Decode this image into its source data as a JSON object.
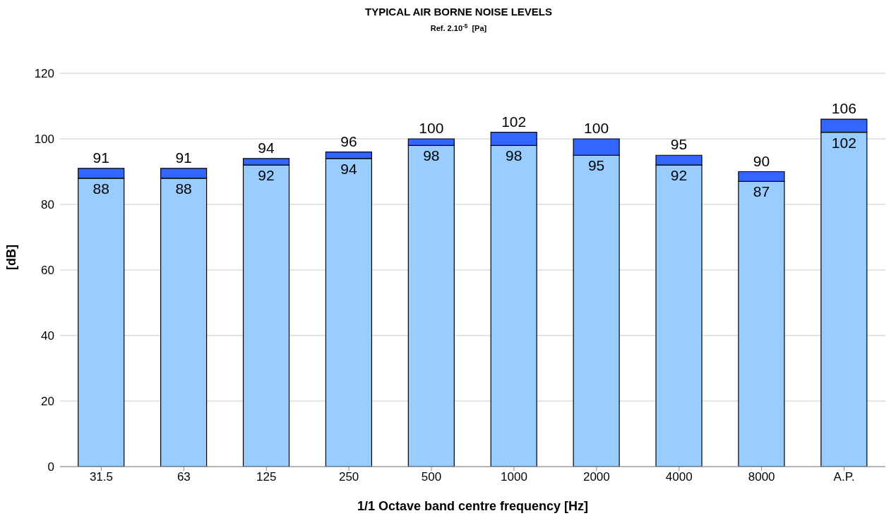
{
  "chart_data": {
    "type": "bar",
    "title": "TYPICAL AIR BORNE NOISE LEVELS",
    "subtitle": "Ref. 2.10$^{-5}$  [Pa]",
    "xlabel": "1/1 Octave band centre frequency [Hz]",
    "ylabel": "[dB]",
    "categories": [
      "31.5",
      "63",
      "125",
      "250",
      "500",
      "1000",
      "2000",
      "4000",
      "8000",
      "A.P."
    ],
    "stacked": true,
    "series": [
      {
        "color": "#99ccff",
        "values": [
          88,
          88,
          92,
          94,
          98,
          98,
          95,
          92,
          87,
          102
        ],
        "value_labels": [
          "88",
          "88",
          "92",
          "94",
          "98",
          "98",
          "95",
          "92",
          "87",
          "102"
        ]
      },
      {
        "color": "#3366ff",
        "values": [
          3,
          3,
          2,
          2,
          2,
          4,
          5,
          3,
          3,
          4
        ]
      }
    ],
    "totals": [
      "91",
      "91",
      "94",
      "96",
      "100",
      "102",
      "100",
      "95",
      "90",
      "106"
    ],
    "ylim": [
      0,
      120
    ],
    "yticks": [
      0,
      20,
      40,
      60,
      80,
      100,
      120
    ],
    "grid": "y",
    "legend": false
  }
}
